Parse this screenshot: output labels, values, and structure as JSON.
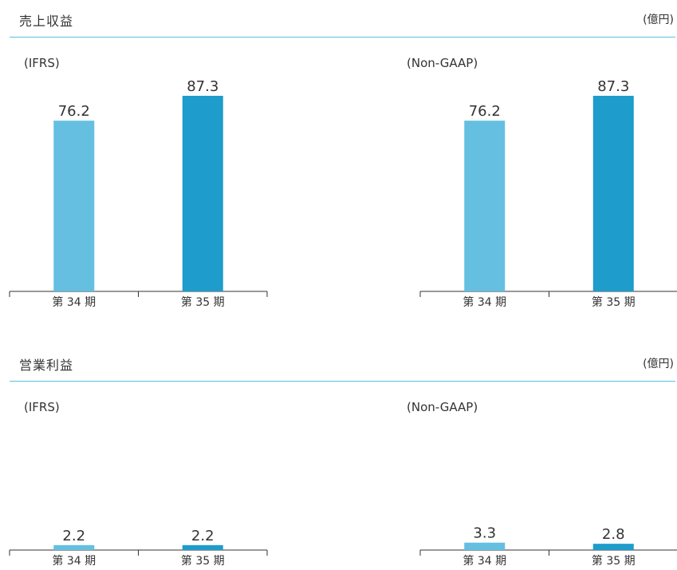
{
  "sections": [
    {
      "title": "売上収益",
      "unit": "(億円)"
    },
    {
      "title": "営業利益",
      "unit": "(億円)"
    }
  ],
  "colors": {
    "bar_prev": "#64bfe1",
    "bar_curr": "#1e9ccb",
    "rule": "#5bc0e0",
    "axis": "#333333"
  },
  "chart_data": [
    {
      "type": "bar",
      "section": "売上収益",
      "title": "(IFRS)",
      "categories": [
        "第 34 期",
        "第 35 期"
      ],
      "values": [
        76.2,
        87.3
      ],
      "ylim": [
        0,
        87.3
      ]
    },
    {
      "type": "bar",
      "section": "売上収益",
      "title": "(Non-GAAP)",
      "categories": [
        "第 34 期",
        "第 35 期"
      ],
      "values": [
        76.2,
        87.3
      ],
      "ylim": [
        0,
        87.3
      ]
    },
    {
      "type": "bar",
      "section": "営業利益",
      "title": "(IFRS)",
      "categories": [
        "第 34 期",
        "第 35 期"
      ],
      "values": [
        2.2,
        2.2
      ],
      "ylim": [
        0,
        87.3
      ]
    },
    {
      "type": "bar",
      "section": "営業利益",
      "title": "(Non-GAAP)",
      "categories": [
        "第 34 期",
        "第 35 期"
      ],
      "values": [
        3.3,
        2.8
      ],
      "ylim": [
        0,
        87.3
      ]
    }
  ]
}
